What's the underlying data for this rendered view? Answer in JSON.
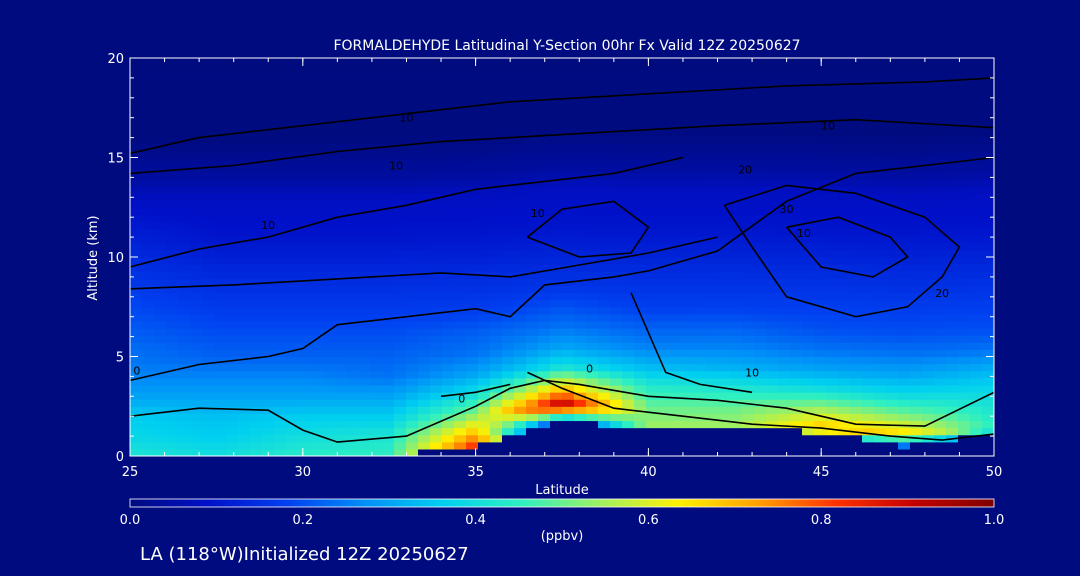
{
  "chart_data": {
    "type": "heatmap",
    "title": "FORMALDEHYDE Latitudinal Y-Section 00hr  Fx Valid 12Z 20250627",
    "xlabel": "Latitude",
    "ylabel": "Altitude (km)",
    "xlim": [
      25,
      50
    ],
    "ylim": [
      0,
      20
    ],
    "x_ticks": [
      "25",
      "30",
      "35",
      "40",
      "45",
      "50"
    ],
    "y_ticks": [
      "0",
      "5",
      "10",
      "15",
      "20"
    ],
    "colorbar": {
      "label": "(ppbv)",
      "range": [
        0.0,
        1.0
      ],
      "ticks": [
        "0.0",
        "0.2",
        "0.4",
        "0.6",
        "0.8",
        "1.0"
      ],
      "colors": [
        "#000B80",
        "#0010C8",
        "#0040F0",
        "#0090F8",
        "#00D0F0",
        "#30F0C0",
        "#A0F060",
        "#FFF000",
        "#FFA000",
        "#FF3000",
        "#C00000",
        "#800000"
      ]
    },
    "latitudes": [
      25,
      27.5,
      30,
      32.5,
      35,
      37.5,
      40,
      42.5,
      45,
      47.5,
      50
    ],
    "surface_altitude_km": [
      0,
      0,
      0,
      0,
      0.5,
      1.8,
      1.4,
      1.5,
      1.2,
      0.5,
      1.2
    ],
    "profile_altitudes_km": [
      0,
      1,
      2,
      3,
      4,
      5,
      6,
      7,
      8,
      9,
      10,
      11,
      12,
      13,
      14,
      15,
      16,
      17,
      18,
      19,
      20
    ],
    "formaldehyde_ppbv": [
      [
        0.42,
        0.38,
        0.36,
        0.3,
        0.26,
        0.24,
        0.22,
        0.2,
        0.18,
        0.16,
        0.14,
        0.12,
        0.1,
        0.08,
        0.04,
        0.02,
        0.0,
        0.0,
        0.0,
        0.0,
        0.0
      ],
      [
        0.4,
        0.36,
        0.34,
        0.3,
        0.26,
        0.22,
        0.2,
        0.18,
        0.16,
        0.14,
        0.12,
        0.1,
        0.09,
        0.08,
        0.04,
        0.02,
        0.0,
        0.0,
        0.0,
        0.0,
        0.0
      ],
      [
        0.44,
        0.4,
        0.36,
        0.3,
        0.26,
        0.22,
        0.2,
        0.18,
        0.16,
        0.14,
        0.12,
        0.1,
        0.09,
        0.08,
        0.04,
        0.02,
        0.0,
        0.0,
        0.0,
        0.0,
        0.0
      ],
      [
        0.45,
        0.42,
        0.36,
        0.3,
        0.24,
        0.22,
        0.2,
        0.18,
        0.16,
        0.14,
        0.12,
        0.1,
        0.09,
        0.08,
        0.04,
        0.02,
        0.0,
        0.0,
        0.0,
        0.0,
        0.0
      ],
      [
        0.9,
        0.7,
        0.52,
        0.4,
        0.3,
        0.24,
        0.22,
        0.18,
        0.16,
        0.14,
        0.12,
        0.1,
        0.09,
        0.08,
        0.04,
        0.02,
        0.0,
        0.0,
        0.0,
        0.0,
        0.0
      ],
      [
        0.0,
        0.0,
        0.95,
        0.65,
        0.4,
        0.3,
        0.24,
        0.2,
        0.16,
        0.14,
        0.12,
        0.1,
        0.09,
        0.08,
        0.04,
        0.02,
        0.0,
        0.0,
        0.0,
        0.0,
        0.0
      ],
      [
        0.0,
        0.55,
        0.5,
        0.44,
        0.34,
        0.26,
        0.22,
        0.18,
        0.16,
        0.14,
        0.12,
        0.1,
        0.09,
        0.08,
        0.04,
        0.02,
        0.0,
        0.0,
        0.0,
        0.0,
        0.0
      ],
      [
        0.0,
        0.55,
        0.5,
        0.42,
        0.32,
        0.26,
        0.22,
        0.18,
        0.16,
        0.14,
        0.12,
        0.1,
        0.09,
        0.08,
        0.04,
        0.02,
        0.0,
        0.0,
        0.0,
        0.0,
        0.0
      ],
      [
        0.0,
        0.7,
        0.55,
        0.4,
        0.3,
        0.24,
        0.2,
        0.18,
        0.16,
        0.14,
        0.12,
        0.1,
        0.09,
        0.08,
        0.04,
        0.02,
        0.0,
        0.0,
        0.0,
        0.0,
        0.0
      ],
      [
        0.0,
        0.65,
        0.5,
        0.38,
        0.3,
        0.24,
        0.2,
        0.18,
        0.16,
        0.14,
        0.12,
        0.1,
        0.09,
        0.08,
        0.04,
        0.02,
        0.0,
        0.0,
        0.0,
        0.0,
        0.0
      ],
      [
        0.0,
        0.45,
        0.42,
        0.38,
        0.32,
        0.24,
        0.2,
        0.18,
        0.16,
        0.14,
        0.12,
        0.1,
        0.09,
        0.08,
        0.04,
        0.02,
        0.0,
        0.0,
        0.0,
        0.0,
        0.0
      ]
    ],
    "contour_labels": [
      "0",
      "0",
      "0",
      "10",
      "10",
      "10",
      "10",
      "10",
      "10",
      "20",
      "20",
      "30",
      "10"
    ]
  },
  "footer": {
    "location_text": "LA (118°W)Initialized 12Z 20250627"
  }
}
